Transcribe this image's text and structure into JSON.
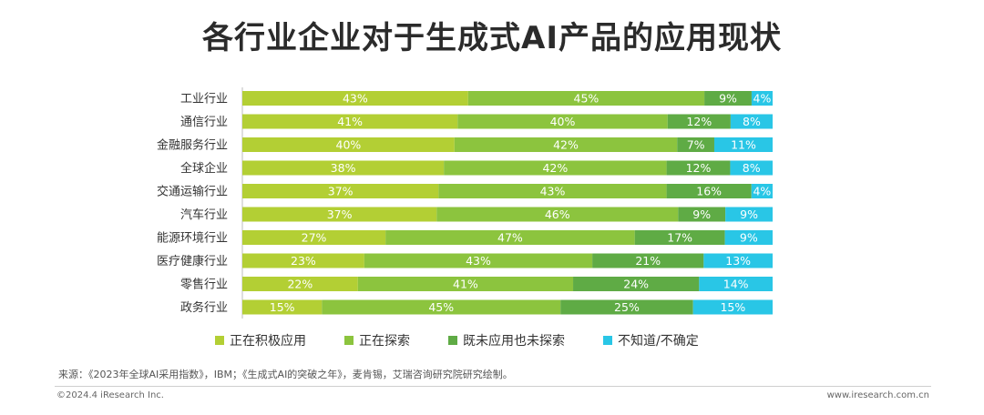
{
  "title": "各行业企业对于生成式AI产品的应用现状",
  "chart_data": {
    "type": "bar",
    "orientation": "horizontal",
    "stacked": true,
    "percent_stacked": true,
    "categories": [
      "工业行业",
      "通信行业",
      "金融服务行业",
      "全球企业",
      "交通运输行业",
      "汽车行业",
      "能源环境行业",
      "医疗健康行业",
      "零售行业",
      "政务行业"
    ],
    "series": [
      {
        "name": "正在积极应用",
        "color": "#b3cf34",
        "values": [
          43,
          41,
          40,
          38,
          37,
          37,
          27,
          23,
          22,
          15
        ]
      },
      {
        "name": "正在探索",
        "color": "#8cc43e",
        "values": [
          45,
          40,
          42,
          42,
          43,
          46,
          47,
          43,
          41,
          45
        ]
      },
      {
        "name": "既未应用也未探索",
        "color": "#5fab45",
        "values": [
          9,
          12,
          7,
          12,
          16,
          9,
          17,
          21,
          24,
          25
        ]
      },
      {
        "name": "不知道/不确定",
        "color": "#29c6e6",
        "values": [
          4,
          8,
          11,
          8,
          4,
          9,
          9,
          13,
          14,
          15
        ]
      }
    ],
    "value_suffix": "%",
    "legend_position": "bottom",
    "grid": false
  },
  "legend": [
    {
      "label": "正在积极应用",
      "color": "#b3cf34"
    },
    {
      "label": "正在探索",
      "color": "#8cc43e"
    },
    {
      "label": "既未应用也未探索",
      "color": "#5fab45"
    },
    {
      "label": "不知道/不确定",
      "color": "#29c6e6"
    }
  ],
  "source": "来源：《2023年全球AI采用指数》，IBM；《生成式AI的突破之年》，麦肯锡，艾瑞咨询研究院研究绘制。",
  "footer": {
    "left": "©2024.4 iResearch Inc.",
    "right": "www.iresearch.com.cn"
  }
}
